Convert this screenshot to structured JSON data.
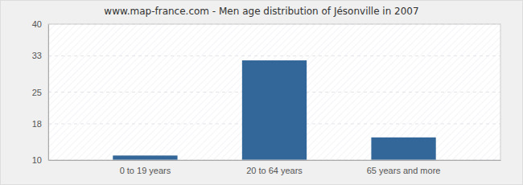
{
  "chart_data": {
    "type": "bar",
    "title": "www.map-france.com - Men age distribution of Jésonville in 2007",
    "categories": [
      "0 to 19 years",
      "20 to 64 years",
      "65 years and more"
    ],
    "values": [
      11,
      32,
      15
    ],
    "color": "#336699",
    "ylim": [
      10,
      40
    ],
    "yticks": [
      10,
      18,
      25,
      33,
      40
    ],
    "grid": true
  }
}
